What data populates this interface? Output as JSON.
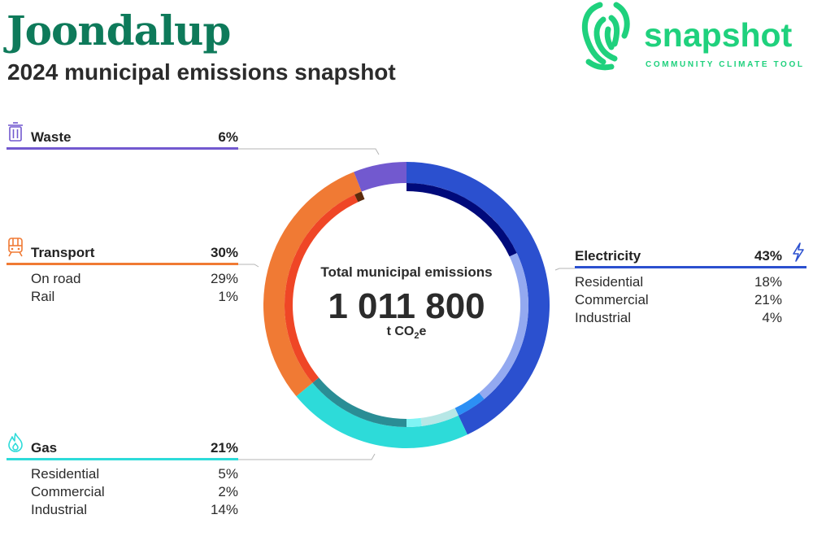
{
  "header": {
    "title": "Joondalup",
    "subtitle": "2024 municipal emissions snapshot"
  },
  "logo": {
    "wordmark": "snapshot",
    "tagline": "COMMUNITY CLIMATE TOOL",
    "color": "#1fd17d"
  },
  "center": {
    "label": "Total municipal emissions",
    "value": "1 011 800",
    "unit_prefix": "t CO",
    "unit_sub": "2",
    "unit_suffix": "e"
  },
  "chart_data": {
    "type": "pie",
    "title": "2024 municipal emissions snapshot",
    "total": 1011800,
    "unit": "t CO2e",
    "series": [
      {
        "name": "Electricity",
        "value": 43,
        "label": "43%",
        "color": "#2b50cf",
        "icon": "lightning-icon",
        "subcategories": [
          {
            "name": "Residential",
            "value": 18,
            "label": "18%",
            "color": "#000a7a"
          },
          {
            "name": "Commercial",
            "value": 21,
            "label": "21%",
            "color": "#93a9f0"
          },
          {
            "name": "Industrial",
            "value": 4,
            "label": "4%",
            "color": "#2c8ff5"
          }
        ]
      },
      {
        "name": "Gas",
        "value": 21,
        "label": "21%",
        "color": "#2ddbd9",
        "icon": "flame-icon",
        "subcategories": [
          {
            "name": "Residential",
            "value": 5,
            "label": "5%",
            "color": "#b7e7e6"
          },
          {
            "name": "Commercial",
            "value": 2,
            "label": "2%",
            "color": "#7ff4f4"
          },
          {
            "name": "Industrial",
            "value": 14,
            "label": "14%",
            "color": "#2a8d95"
          }
        ]
      },
      {
        "name": "Transport",
        "value": 30,
        "label": "30%",
        "color": "#f07a34",
        "icon": "train-icon",
        "subcategories": [
          {
            "name": "On road",
            "value": 29,
            "label": "29%",
            "color": "#ef4626"
          },
          {
            "name": "Rail",
            "value": 1,
            "label": "1%",
            "color": "#5c2b0c"
          }
        ]
      },
      {
        "name": "Waste",
        "value": 6,
        "label": "6%",
        "color": "#7259cf",
        "icon": "trash-icon",
        "subcategories": []
      }
    ]
  }
}
